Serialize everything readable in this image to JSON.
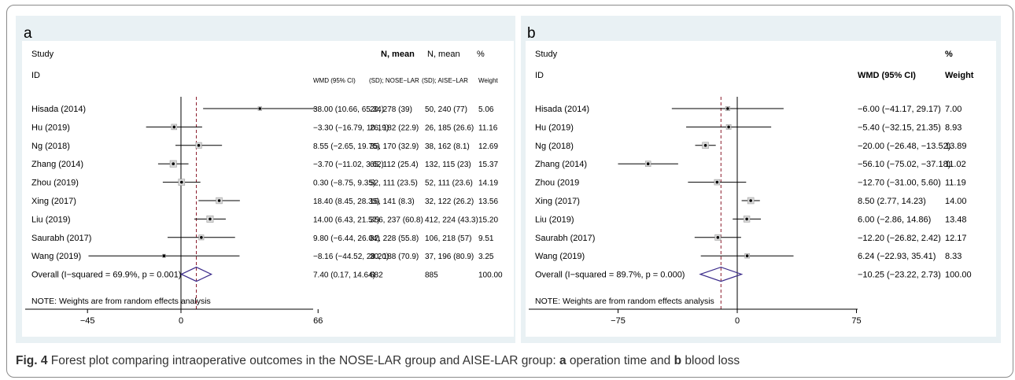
{
  "caption": {
    "label": "Fig. 4",
    "part1": " Forest plot comparing intraoperative outcomes in the NOSE-LAR group and AISE-LAR group: ",
    "a": "a",
    "part2": " operation time and ",
    "b": "b",
    "part3": " blood loss"
  },
  "colors": {
    "panel_bg": "#e9f1f4",
    "plot_bg": "#ffffff",
    "null_line": "#000000",
    "overall_line": "#8b1a2a",
    "diamond": "#3a2a8a",
    "ci": "#000000"
  },
  "chart_data": [
    {
      "type": "forest",
      "panel_label": "a",
      "header": {
        "study": "Study",
        "id": "ID",
        "wmd": "WMD (95% CI)",
        "n1_top": "N, mean",
        "n1_bottom": "(SD); NOSE−LAR",
        "n2_top": "N, mean",
        "n2_bottom": "(SD); AISE−LAR",
        "w_top": "%",
        "w_bottom": "Weight"
      },
      "studies": [
        {
          "name": "Hisada (2014)",
          "est": 38.0,
          "lo": 10.66,
          "hi": 65.34,
          "ci_text": "38.00 (10.66, 65.34)",
          "n1": "20, 278 (39)",
          "n2": "50, 240 (77)",
          "weight": "5.06"
        },
        {
          "name": "Hu (2019)",
          "est": -3.3,
          "lo": -16.79,
          "hi": 10.19,
          "ci_text": "−3.30 (−16.79, 10.19)",
          "n1": "26, 182 (22.9)",
          "n2": "26, 185 (26.6)",
          "weight": "11.16"
        },
        {
          "name": "Ng (2018)",
          "est": 8.55,
          "lo": -2.65,
          "hi": 19.75,
          "ci_text": "8.55 (−2.65, 19.75)",
          "n1": "35, 170 (32.9)",
          "n2": "38, 162 (8.1)",
          "weight": "12.69"
        },
        {
          "name": "Zhang (2014)",
          "est": -3.7,
          "lo": -11.02,
          "hi": 3.62,
          "ci_text": "−3.70 (−11.02, 3.62)",
          "n1": "65, 112 (25.4)",
          "n2": "132, 115 (23)",
          "weight": "15.37"
        },
        {
          "name": "Zhou (2019)",
          "est": 0.3,
          "lo": -8.75,
          "hi": 9.35,
          "ci_text": "0.30 (−8.75, 9.35)",
          "n1": "52, 111 (23.5)",
          "n2": "52, 111 (23.6)",
          "weight": "14.19"
        },
        {
          "name": "Xing (2017)",
          "est": 18.4,
          "lo": 8.45,
          "hi": 28.35,
          "ci_text": "18.40 (8.45, 28.35)",
          "n1": "16, 141 (8.3)",
          "n2": "32, 122 (26.2)",
          "weight": "13.56"
        },
        {
          "name": "Liu (2019)",
          "est": 14.0,
          "lo": 6.43,
          "hi": 21.57,
          "ci_text": "14.00 (6.43, 21.57)",
          "n1": "356, 237 (60.8)",
          "n2": "412, 224 (43.3)",
          "weight": "15.20"
        },
        {
          "name": "Saurabh (2017)",
          "est": 9.8,
          "lo": -6.44,
          "hi": 26.04,
          "ci_text": "9.80 (−6.44, 26.04)",
          "n1": "82, 228 (55.8)",
          "n2": "106, 218 (57)",
          "weight": "9.51"
        },
        {
          "name": "Wang (2019)",
          "est": -8.16,
          "lo": -44.52,
          "hi": 28.2,
          "ci_text": "−8.16 (−44.52, 28.20)",
          "n1": "30, 188 (70.9)",
          "n2": "37, 196 (80.9)",
          "weight": "3.25"
        }
      ],
      "overall": {
        "name": "Overall  (I−squared = 69.9%, p = 0.001)",
        "est": 7.4,
        "lo": 0.17,
        "hi": 14.64,
        "ci_text": "7.40 (0.17, 14.64)",
        "n1": "682",
        "n2": "885",
        "weight": "100.00"
      },
      "note": "NOTE: Weights are from random effects analysis",
      "xticks": [
        -45,
        0,
        66
      ],
      "xtick_labels": [
        "−45",
        "0",
        "66"
      ],
      "xlim": [
        -60,
        100
      ]
    },
    {
      "type": "forest",
      "panel_label": "b",
      "header": {
        "study": "Study",
        "id": "ID",
        "wmd": "WMD (95% CI)",
        "w_top": "%",
        "w_bottom": "Weight"
      },
      "studies": [
        {
          "name": "Hisada (2014)",
          "est": -6.0,
          "lo": -41.17,
          "hi": 29.17,
          "ci_text": "−6.00 (−41.17, 29.17)",
          "weight": "7.00"
        },
        {
          "name": "Hu (2019)",
          "est": -5.4,
          "lo": -32.15,
          "hi": 21.35,
          "ci_text": "−5.40 (−32.15, 21.35)",
          "weight": "8.93"
        },
        {
          "name": "Ng (2018)",
          "est": -20.0,
          "lo": -26.48,
          "hi": -13.52,
          "ci_text": "−20.00 (−26.48, −13.52)",
          "weight": "13.89"
        },
        {
          "name": "Zhang (2014)",
          "est": -56.1,
          "lo": -75.02,
          "hi": -37.18,
          "ci_text": "−56.10 (−75.02, −37.18)",
          "weight": "11.02"
        },
        {
          "name": "Zhou (2019",
          "est": -12.7,
          "lo": -31.0,
          "hi": 5.6,
          "ci_text": "−12.70 (−31.00, 5.60)",
          "weight": "11.19"
        },
        {
          "name": "Xing (2017)",
          "est": 8.5,
          "lo": 2.77,
          "hi": 14.23,
          "ci_text": "8.50 (2.77, 14.23)",
          "weight": "14.00"
        },
        {
          "name": "Liu (2019)",
          "est": 6.0,
          "lo": -2.86,
          "hi": 14.86,
          "ci_text": "6.00 (−2.86, 14.86)",
          "weight": "13.48"
        },
        {
          "name": "Saurabh (2017)",
          "est": -12.2,
          "lo": -26.82,
          "hi": 2.42,
          "ci_text": "−12.20 (−26.82, 2.42)",
          "weight": "12.17"
        },
        {
          "name": "Wang (2019)",
          "est": 6.24,
          "lo": -22.93,
          "hi": 35.41,
          "ci_text": "6.24 (−22.93, 35.41)",
          "weight": "8.33"
        }
      ],
      "overall": {
        "name": "Overall  (I−squared = 89.7%, p = 0.000)",
        "est": -10.25,
        "lo": -23.22,
        "hi": 2.73,
        "ci_text": "−10.25 (−23.22, 2.73)",
        "weight": "100.00"
      },
      "note": "NOTE: Weights are from random effects analysis",
      "xticks": [
        -75,
        0,
        75
      ],
      "xtick_labels": [
        "−75",
        "0",
        "75"
      ],
      "xlim": [
        -100,
        110
      ]
    }
  ]
}
